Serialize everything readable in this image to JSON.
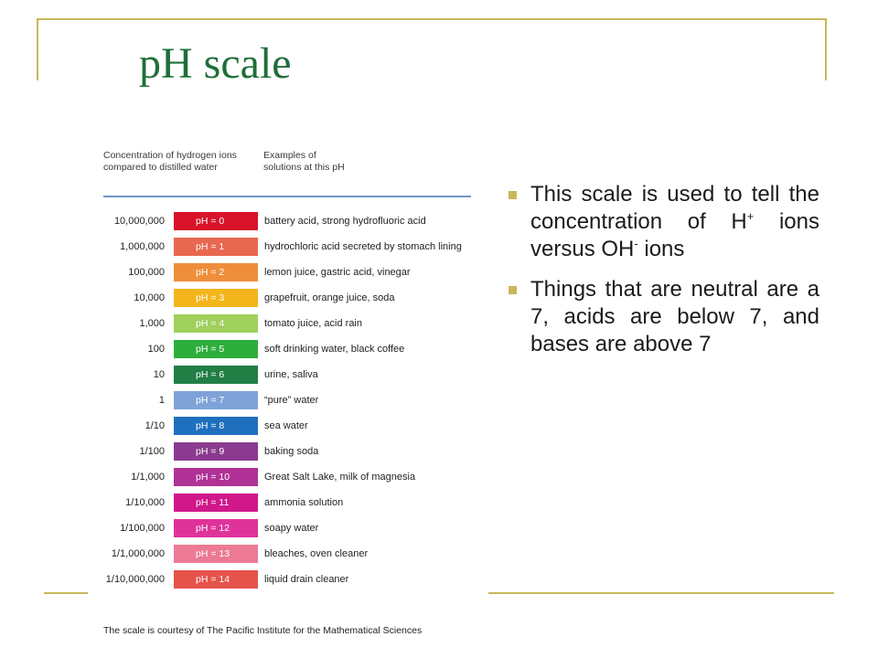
{
  "slide": {
    "title": "pH scale"
  },
  "figure": {
    "header_left": "Concentration of hydrogen ions compared to distilled water",
    "header_right": "Examples of solutions at this pH",
    "rows": [
      {
        "conc": "10,000,000",
        "ph": "pH = 0",
        "example": "battery acid, strong hydrofluoric acid",
        "color": "#d8132a"
      },
      {
        "conc": "1,000,000",
        "ph": "pH = 1",
        "example": "hydrochloric acid secreted by stomach lining",
        "color": "#e8674f"
      },
      {
        "conc": "100,000",
        "ph": "pH = 2",
        "example": "lemon juice, gastric acid, vinegar",
        "color": "#ef8e3a"
      },
      {
        "conc": "10,000",
        "ph": "pH = 3",
        "example": "grapefruit, orange juice, soda",
        "color": "#f3b51c"
      },
      {
        "conc": "1,000",
        "ph": "pH = 4",
        "example": "tomato juice, acid rain",
        "color": "#9fcf5c"
      },
      {
        "conc": "100",
        "ph": "pH = 5",
        "example": "soft drinking water, black coffee",
        "color": "#2eae3c"
      },
      {
        "conc": "10",
        "ph": "pH = 6",
        "example": "urine, saliva",
        "color": "#217e45"
      },
      {
        "conc": "1",
        "ph": "pH = 7",
        "example": "“pure” water",
        "color": "#7fa3d8"
      },
      {
        "conc": "1/10",
        "ph": "pH = 8",
        "example": "sea water",
        "color": "#1f6fbf"
      },
      {
        "conc": "1/100",
        "ph": "pH = 9",
        "example": "baking soda",
        "color": "#8b3a8f"
      },
      {
        "conc": "1/1,000",
        "ph": "pH = 10",
        "example": "Great Salt Lake, milk of magnesia",
        "color": "#b03196"
      },
      {
        "conc": "1/10,000",
        "ph": "pH = 11",
        "example": "ammonia solution",
        "color": "#d0188b"
      },
      {
        "conc": "1/100,000",
        "ph": "pH = 12",
        "example": "soapy water",
        "color": "#e0339a"
      },
      {
        "conc": "1/1,000,000",
        "ph": "pH = 13",
        "example": "bleaches, oven cleaner",
        "color": "#ec7a95"
      },
      {
        "conc": "1/10,000,000",
        "ph": "pH = 14",
        "example": "liquid drain cleaner",
        "color": "#e5534b"
      }
    ],
    "credit": "The scale is courtesy of The Pacific Institute for the Mathematical Sciences"
  },
  "bullets": {
    "b1_part1": "This scale is used to tell the concentration of H",
    "b1_sup1": "+",
    "b1_part2": " ions versus OH",
    "b1_sup2": "-",
    "b1_part3": " ions",
    "b2": "Things that are neutral are a 7, acids are below 7, and bases are above 7"
  },
  "colors": {
    "title": "#1f6e3a",
    "accent": "#c9b75a",
    "rule": "#6e95c6"
  }
}
